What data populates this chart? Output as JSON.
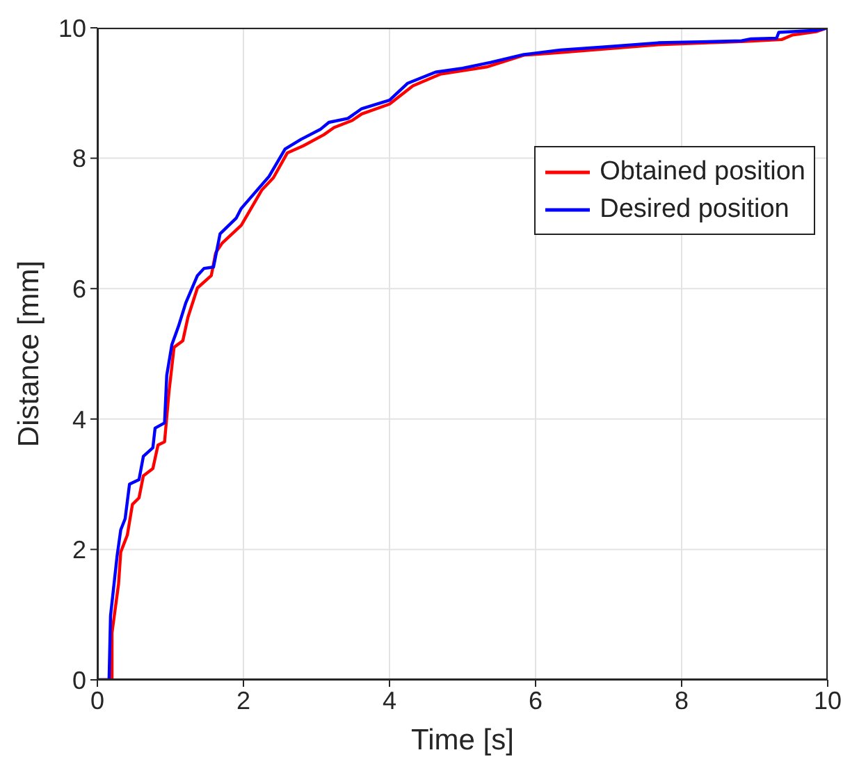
{
  "chart_data": {
    "type": "line",
    "xlabel": "Time [s]",
    "ylabel": "Distance [mm]",
    "xlim": [
      0,
      10
    ],
    "ylim": [
      0,
      10
    ],
    "xticks": [
      0,
      2,
      4,
      6,
      8,
      10
    ],
    "yticks": [
      0,
      2,
      4,
      6,
      8,
      10
    ],
    "grid": true,
    "legend": "right",
    "series": [
      {
        "name": "Obtained position",
        "color": "#ff0000",
        "x": [
          0,
          0.2,
          0.2,
          0.29,
          0.32,
          0.41,
          0.48,
          0.57,
          0.63,
          0.76,
          0.83,
          0.92,
          0.98,
          1.05,
          1.17,
          1.24,
          1.37,
          1.56,
          1.62,
          1.71,
          1.97,
          2.25,
          2.41,
          2.6,
          2.82,
          3.1,
          3.24,
          3.49,
          3.62,
          4.0,
          4.32,
          4.7,
          5.33,
          5.84,
          6.34,
          7.68,
          8.82,
          9.37,
          9.52,
          9.84,
          10
        ],
        "values": [
          0,
          0,
          0.72,
          1.47,
          1.96,
          2.22,
          2.69,
          2.79,
          3.13,
          3.24,
          3.6,
          3.65,
          4.41,
          5.1,
          5.2,
          5.56,
          6.01,
          6.2,
          6.55,
          6.7,
          6.97,
          7.51,
          7.7,
          8.08,
          8.19,
          8.36,
          8.47,
          8.58,
          8.68,
          8.83,
          9.11,
          9.29,
          9.4,
          9.58,
          9.62,
          9.74,
          9.79,
          9.82,
          9.89,
          9.94,
          10
        ]
      },
      {
        "name": "Desired position",
        "color": "#0000ff",
        "x": [
          0,
          0.16,
          0.18,
          0.27,
          0.32,
          0.38,
          0.44,
          0.57,
          0.63,
          0.76,
          0.79,
          0.92,
          0.95,
          1.02,
          1.11,
          1.21,
          1.37,
          1.46,
          1.59,
          1.68,
          1.9,
          1.97,
          2.35,
          2.57,
          2.79,
          3.05,
          3.17,
          3.43,
          3.62,
          4.0,
          4.25,
          4.63,
          5.0,
          5.39,
          5.84,
          6.34,
          6.98,
          7.68,
          8.82,
          8.95,
          9.3,
          9.33,
          9.84,
          10
        ],
        "values": [
          0,
          0,
          0.98,
          1.9,
          2.3,
          2.47,
          3.0,
          3.07,
          3.43,
          3.56,
          3.86,
          3.94,
          4.67,
          5.14,
          5.42,
          5.78,
          6.2,
          6.31,
          6.33,
          6.84,
          7.08,
          7.23,
          7.72,
          8.14,
          8.29,
          8.44,
          8.55,
          8.61,
          8.76,
          8.89,
          9.15,
          9.32,
          9.38,
          9.47,
          9.59,
          9.66,
          9.71,
          9.77,
          9.8,
          9.83,
          9.84,
          9.93,
          9.96,
          10
        ]
      }
    ]
  }
}
